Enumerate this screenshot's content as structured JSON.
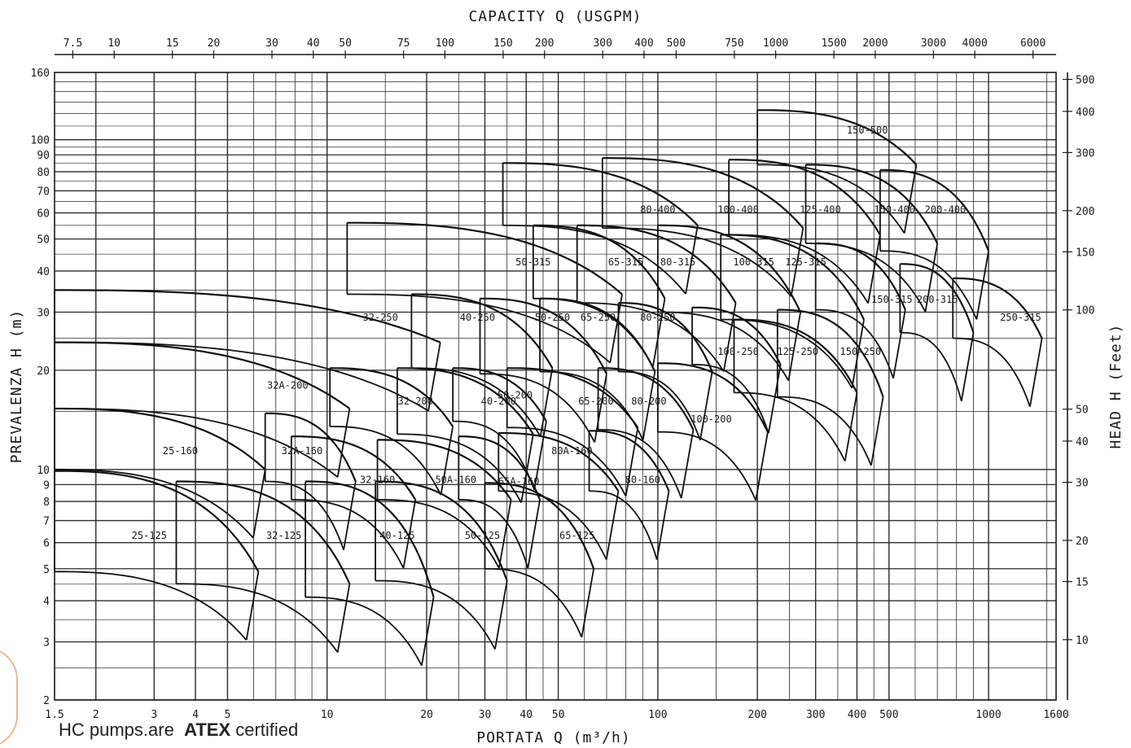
{
  "chart_data": {
    "type": "line",
    "top_axis_title": "CAPACITY   Q (USGPM)",
    "bottom_axis_title": "PORTATA   Q (m³/h)",
    "left_axis_title": "PREVALENZA   H (m)",
    "right_axis_title": "HEAD   H (Feet)",
    "x_scale": "log",
    "y_scale": "log",
    "xlim": [
      1.5,
      1600
    ],
    "ylim": [
      2,
      160
    ],
    "x_ticks": [
      1.5,
      2,
      3,
      4,
      5,
      10,
      20,
      30,
      40,
      50,
      100,
      200,
      300,
      400,
      500,
      1000,
      1600
    ],
    "y_ticks": [
      2,
      3,
      4,
      5,
      6,
      7,
      8,
      9,
      10,
      20,
      30,
      40,
      50,
      60,
      70,
      80,
      90,
      100,
      160
    ],
    "top_ticks": [
      "7.5",
      "10",
      "15",
      "20",
      "30",
      "40",
      "50",
      "75",
      "100",
      "150",
      "200",
      "300",
      "400",
      "500",
      "750",
      "1000",
      "1500",
      "2000",
      "3000",
      "4000",
      "6000"
    ],
    "top_tick_values": [
      7.5,
      10,
      15,
      20,
      30,
      40,
      50,
      75,
      100,
      150,
      200,
      300,
      400,
      500,
      750,
      1000,
      1500,
      2000,
      3000,
      4000,
      6000
    ],
    "right_ticks": [
      "10",
      "15",
      "20",
      "30",
      "40",
      "50",
      "100",
      "150",
      "200",
      "300",
      "400",
      "500"
    ],
    "right_tick_values": [
      10,
      15,
      20,
      30,
      40,
      50,
      100,
      150,
      200,
      300,
      400,
      500
    ],
    "grid": true,
    "regions": [
      {
        "name": "25-125",
        "qmin": 1.5,
        "qmax": 6.2,
        "hmax": 9.9,
        "hmin": 4.9,
        "label_q": 2.9,
        "label_h": 6.3
      },
      {
        "name": "25-160",
        "qmin": 1.5,
        "qmax": 6.5,
        "hmax": 15.3,
        "hmin": 10,
        "label_q": 3.6,
        "label_h": 11.4
      },
      {
        "name": "32-125",
        "qmin": 3.5,
        "qmax": 11.7,
        "hmax": 9.2,
        "hmin": 4.5,
        "label_q": 7.4,
        "label_h": 6.3
      },
      {
        "name": "32A-160",
        "qmin": 6.5,
        "qmax": 12.2,
        "hmax": 14.8,
        "hmin": 9.2,
        "label_q": 8.4,
        "label_h": 11.4
      },
      {
        "name": "32A-200",
        "qmin": 1.5,
        "qmax": 11.7,
        "hmax": 24.3,
        "hmin": 15.3,
        "label_q": 7.6,
        "label_h": 18
      },
      {
        "name": "32-250",
        "qmin": 1.5,
        "qmax": 22,
        "hmax": 35,
        "hmin": 24.3,
        "label_q": 14.5,
        "label_h": 28.9
      },
      {
        "name": "32-160",
        "qmin": 7.8,
        "qmax": 18.5,
        "hmax": 12.6,
        "hmin": 8.1,
        "label_q": 14.2,
        "label_h": 9.3
      },
      {
        "name": "32-200",
        "qmin": 10.2,
        "qmax": 24,
        "hmax": 20.3,
        "hmin": 13.5,
        "label_q": 18.5,
        "label_h": 16.1
      },
      {
        "name": "40-125",
        "qmin": 8.6,
        "qmax": 21,
        "hmax": 9.2,
        "hmin": 4.1,
        "label_q": 16.3,
        "label_h": 6.3
      },
      {
        "name": "50A-160",
        "qmin": 14.2,
        "qmax": 36,
        "hmax": 12.3,
        "hmin": 8.1,
        "label_q": 24.5,
        "label_h": 9.3
      },
      {
        "name": "40-200",
        "qmin": 16.3,
        "qmax": 42,
        "hmax": 20.3,
        "hmin": 12.8,
        "label_q": 33,
        "label_h": 16.1
      },
      {
        "name": "40-250",
        "qmin": 18,
        "qmax": 48,
        "hmax": 34,
        "hmin": 20.3,
        "label_q": 28.5,
        "label_h": 28.9
      },
      {
        "name": "50-125",
        "qmin": 14,
        "qmax": 35,
        "hmax": 9.2,
        "hmin": 4.6,
        "label_q": 29.5,
        "label_h": 6.3
      },
      {
        "name": "65A-160",
        "qmin": 25,
        "qmax": 44,
        "hmax": 12.6,
        "hmin": 8.1,
        "label_q": 38,
        "label_h": 9.2
      },
      {
        "name": "50-200",
        "qmin": 24,
        "qmax": 46,
        "hmax": 20.3,
        "hmin": 14,
        "label_q": 37,
        "label_h": 16.8
      },
      {
        "name": "50-250",
        "qmin": 29,
        "qmax": 70,
        "hmax": 33,
        "hmin": 19.5,
        "label_q": 48,
        "label_h": 28.9
      },
      {
        "name": "50-315",
        "qmin": 11.5,
        "qmax": 78,
        "hmax": 56,
        "hmin": 34,
        "label_q": 42,
        "label_h": 42.6
      },
      {
        "name": "65-125",
        "qmin": 30,
        "qmax": 64,
        "hmax": 9.1,
        "hmin": 5,
        "label_q": 57,
        "label_h": 6.3
      },
      {
        "name": "80A-160",
        "qmin": 33,
        "qmax": 76,
        "hmax": 12.9,
        "hmin": 8.6,
        "label_q": 55,
        "label_h": 11.4
      },
      {
        "name": "65-200",
        "qmin": 35,
        "qmax": 87,
        "hmax": 20.3,
        "hmin": 13.4,
        "label_q": 65,
        "label_h": 16.1
      },
      {
        "name": "65-250",
        "qmin": 44,
        "qmax": 98,
        "hmax": 33,
        "hmin": 19.8,
        "label_q": 66,
        "label_h": 28.9
      },
      {
        "name": "65-315",
        "qmin": 42,
        "qmax": 105,
        "hmax": 55,
        "hmin": 33,
        "label_q": 80,
        "label_h": 42.6
      },
      {
        "name": "80-160",
        "qmin": 62,
        "qmax": 108,
        "hmax": 13.1,
        "hmin": 8.6,
        "label_q": 90,
        "label_h": 9.3
      },
      {
        "name": "80-200",
        "qmin": 66,
        "qmax": 128,
        "hmax": 20.3,
        "hmin": 13.2,
        "label_q": 94,
        "label_h": 16.1
      },
      {
        "name": "80-250",
        "qmin": 76,
        "qmax": 146,
        "hmax": 32,
        "hmin": 19.8,
        "label_q": 100,
        "label_h": 28.9
      },
      {
        "name": "80-315",
        "qmin": 57,
        "qmax": 172,
        "hmax": 55,
        "hmin": 32,
        "label_q": 115,
        "label_h": 42.6
      },
      {
        "name": "80-400",
        "qmin": 34,
        "qmax": 132,
        "hmax": 85,
        "hmin": 55,
        "label_q": 100,
        "label_h": 61.4
      },
      {
        "name": "100-200",
        "qmin": 100,
        "qmax": 215,
        "hmax": 21,
        "hmin": 13,
        "label_q": 145,
        "label_h": 14.2
      },
      {
        "name": "100-250",
        "qmin": 127,
        "qmax": 235,
        "hmax": 31,
        "hmin": 20.8,
        "label_q": 175,
        "label_h": 22.8
      },
      {
        "name": "100-315",
        "qmin": 100,
        "qmax": 270,
        "hmax": 55,
        "hmin": 30,
        "label_q": 195,
        "label_h": 42.6
      },
      {
        "name": "100-400",
        "qmin": 68,
        "qmax": 275,
        "hmax": 88,
        "hmin": 54,
        "label_q": 175,
        "label_h": 61.4
      },
      {
        "name": "125-250",
        "qmin": 170,
        "qmax": 400,
        "hmax": 28.5,
        "hmin": 17.1,
        "label_q": 265,
        "label_h": 22.8
      },
      {
        "name": "125-315",
        "qmin": 155,
        "qmax": 420,
        "hmax": 51.5,
        "hmin": 28.5,
        "label_q": 280,
        "label_h": 42.6
      },
      {
        "name": "125-400",
        "qmin": 164,
        "qmax": 470,
        "hmax": 87,
        "hmin": 51.5,
        "label_q": 310,
        "label_h": 61.4
      },
      {
        "name": "150-250",
        "qmin": 230,
        "qmax": 480,
        "hmax": 30.5,
        "hmin": 16.6,
        "label_q": 410,
        "label_h": 22.8
      },
      {
        "name": "150-315",
        "qmin": 300,
        "qmax": 560,
        "hmax": 48.5,
        "hmin": 30.5,
        "label_q": 510,
        "label_h": 32.8
      },
      {
        "name": "150-400",
        "qmin": 280,
        "qmax": 700,
        "hmax": 84,
        "hmin": 48.5,
        "label_q": 520,
        "label_h": 61.4
      },
      {
        "name": "150-500",
        "qmin": 200,
        "qmax": 605,
        "hmax": 123,
        "hmin": 84,
        "label_q": 430,
        "label_h": 107
      },
      {
        "name": "200-315",
        "qmin": 540,
        "qmax": 900,
        "hmax": 42,
        "hmin": 26,
        "label_q": 700,
        "label_h": 32.8
      },
      {
        "name": "200-400",
        "qmin": 470,
        "qmax": 1000,
        "hmax": 81,
        "hmin": 46,
        "label_q": 740,
        "label_h": 61.4
      },
      {
        "name": "250-315",
        "qmin": 780,
        "qmax": 1450,
        "hmax": 38,
        "hmin": 25,
        "label_q": 1250,
        "label_h": 28.9
      }
    ]
  },
  "footer": {
    "prefix": "HC pumps.are",
    "brand": "ATEX",
    "suffix": "certified"
  }
}
